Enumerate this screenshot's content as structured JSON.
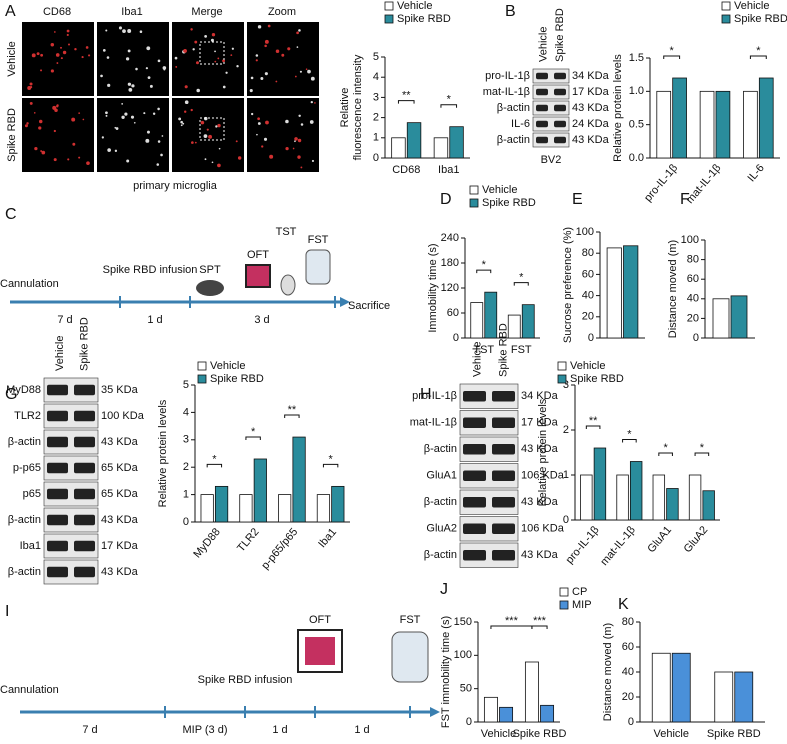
{
  "figure": {
    "panel_labels": [
      "A",
      "B",
      "C",
      "D",
      "E",
      "F",
      "G",
      "H",
      "I",
      "J",
      "K"
    ],
    "A_images": {
      "columns": [
        "CD68",
        "Iba1",
        "Merge",
        "Zoom"
      ],
      "rows": [
        "Vehicle",
        "Spike RBD"
      ],
      "caption": "primary microglia"
    },
    "B_blot": {
      "lanes": [
        "Vehicle",
        "Spike RBD"
      ],
      "bands": [
        [
          "pro-IL-1β",
          "34 KDa"
        ],
        [
          "mat-IL-1β",
          "17 KDa"
        ],
        [
          "β-actin",
          "43 KDa"
        ],
        [
          "IL-6",
          "24 KDa"
        ],
        [
          "β-actin",
          "43 KDa"
        ]
      ],
      "cell": "BV2"
    },
    "C_timeline": {
      "events": [
        "Cannulation",
        "Spike RBD infusion",
        "SPT",
        "OFT",
        "TST",
        "FST",
        "Sacrifice"
      ],
      "durations": [
        "7 d",
        "1 d",
        "3 d"
      ]
    },
    "G_blot": {
      "lanes": [
        "Vehicle",
        "Spike RBD"
      ],
      "bands": [
        [
          "MyD88",
          "35 KDa"
        ],
        [
          "TLR2",
          "100 KDa"
        ],
        [
          "β-actin",
          "43 KDa"
        ],
        [
          "p-p65",
          "65 KDa"
        ],
        [
          "p65",
          "65 KDa"
        ],
        [
          "β-actin",
          "43 KDa"
        ],
        [
          "Iba1",
          "17 KDa"
        ],
        [
          "β-actin",
          "43 KDa"
        ]
      ]
    },
    "H_blot": {
      "lanes": [
        "Vehicle",
        "Spike RBD"
      ],
      "bands": [
        [
          "pro-IL-1β",
          "34 KDa"
        ],
        [
          "mat-IL-1β",
          "17 KDa"
        ],
        [
          "β-actin",
          "43 KDa"
        ],
        [
          "GluA1",
          "106 KDa"
        ],
        [
          "β-actin",
          "43 KDa"
        ],
        [
          "GluA2",
          "106 KDa"
        ],
        [
          "β-actin",
          "43 KDa"
        ]
      ]
    },
    "I_timeline": {
      "events": [
        "Cannulation",
        "Spike RBD infusion",
        "OFT",
        "FST"
      ],
      "durations": [
        "7 d",
        "MIP (3 d)",
        "1 d",
        "1 d"
      ]
    }
  },
  "chart_data": [
    {
      "type": "bar",
      "y_label": [
        "Relative",
        "fluorescence intensity"
      ],
      "categories": [
        "CD68",
        "Iba1"
      ],
      "series": [
        {
          "name": "Vehicle",
          "color": "#ffffff",
          "values": [
            1.0,
            1.0
          ]
        },
        {
          "name": "Spike RBD",
          "color": "#2a8c9c",
          "values": [
            1.75,
            1.55
          ]
        }
      ],
      "ylim": [
        0,
        5
      ],
      "yticks": [
        0,
        1,
        2,
        3,
        4,
        5
      ],
      "significance": [
        "**",
        "*"
      ]
    },
    {
      "type": "bar",
      "y_label": "Relative protein levels",
      "categories": [
        "pro-IL-1β",
        "mat-IL-1β",
        "IL-6"
      ],
      "series": [
        {
          "name": "Vehicle",
          "color": "#ffffff",
          "values": [
            1.0,
            1.0,
            1.0
          ]
        },
        {
          "name": "Spike RBD",
          "color": "#2a8c9c",
          "values": [
            1.2,
            1.0,
            1.2
          ]
        }
      ],
      "ylim": [
        0,
        1.5
      ],
      "yticks": [
        {
          "value": 0,
          "label": "0.0"
        },
        {
          "value": 0.5,
          "label": "0.5"
        },
        {
          "value": 1,
          "label": "1.0"
        },
        {
          "value": 1.5,
          "label": "1.5"
        }
      ],
      "significance": [
        "*",
        null,
        "*"
      ]
    },
    {
      "type": "bar",
      "y_label": "Immobility time (s)",
      "categories": [
        "TST",
        "FST"
      ],
      "series": [
        {
          "name": "Vehicle",
          "color": "#ffffff",
          "values": [
            85,
            55
          ]
        },
        {
          "name": "Spike RBD",
          "color": "#2a8c9c",
          "values": [
            110,
            80
          ]
        }
      ],
      "ylim": [
        0,
        240
      ],
      "yticks": [
        0,
        60,
        120,
        180,
        240
      ],
      "significance": [
        "*",
        "*"
      ]
    },
    {
      "type": "bar",
      "y_label": "Sucrose preference (%)",
      "categories": [
        null
      ],
      "series": [
        {
          "color": "#ffffff",
          "values": [
            85
          ]
        },
        {
          "color": "#2a8c9c",
          "values": [
            87
          ]
        }
      ],
      "ylim": [
        0,
        100
      ],
      "yticks": [
        0,
        20,
        40,
        60,
        80,
        100
      ]
    },
    {
      "type": "bar",
      "y_label": "Distance moved (m)",
      "categories": [
        null
      ],
      "series": [
        {
          "color": "#ffffff",
          "values": [
            40
          ]
        },
        {
          "color": "#2a8c9c",
          "values": [
            43
          ]
        }
      ],
      "ylim": [
        0,
        100
      ],
      "yticks": [
        0,
        20,
        40,
        60,
        80,
        100
      ]
    },
    {
      "type": "bar",
      "y_label": "Relative protein levels",
      "categories": [
        "MyD88",
        "TLR2",
        "p-p65/p65",
        "Iba1"
      ],
      "series": [
        {
          "name": "Vehicle",
          "color": "#ffffff",
          "values": [
            1.0,
            1.0,
            1.0,
            1.0
          ]
        },
        {
          "name": "Spike RBD",
          "color": "#2a8c9c",
          "values": [
            1.3,
            2.3,
            3.1,
            1.3
          ]
        }
      ],
      "ylim": [
        0,
        5
      ],
      "yticks": [
        0,
        1,
        2,
        3,
        4,
        5
      ],
      "significance": [
        "*",
        "*",
        "**",
        "*"
      ]
    },
    {
      "type": "bar",
      "y_label": "Relative protein levels",
      "categories": [
        "pro-IL-1β",
        "mat-IL-1β",
        "GluA1",
        "GluA2"
      ],
      "series": [
        {
          "name": "Vehicle",
          "color": "#ffffff",
          "values": [
            1.0,
            1.0,
            1.0,
            1.0
          ]
        },
        {
          "name": "Spike RBD",
          "color": "#2a8c9c",
          "values": [
            1.6,
            1.3,
            0.7,
            0.65
          ]
        }
      ],
      "ylim": [
        0,
        3
      ],
      "yticks": [
        0,
        1,
        2,
        3
      ],
      "significance": [
        "**",
        "*",
        "*",
        "*"
      ]
    },
    {
      "type": "bar",
      "y_label": "FST immobility time (s)",
      "categories": [
        "Vehicle",
        "Spike RBD"
      ],
      "series": [
        {
          "name": "CP",
          "color": "#ffffff",
          "values": [
            37,
            90
          ]
        },
        {
          "name": "MIP",
          "color": "#4a90d9",
          "values": [
            22,
            25
          ]
        }
      ],
      "ylim": [
        0,
        150
      ],
      "yticks": [
        0,
        50,
        100,
        150
      ],
      "significance": [
        "***",
        "***"
      ]
    },
    {
      "type": "bar",
      "y_label": "Distance moved (m)",
      "categories": [
        "Vehicle",
        "Spike RBD"
      ],
      "series": [
        {
          "color": "#ffffff",
          "values": [
            55,
            40
          ]
        },
        {
          "color": "#4a90d9",
          "values": [
            55,
            40
          ]
        }
      ],
      "ylim": [
        0,
        80
      ],
      "yticks": [
        0,
        20,
        40,
        60,
        80
      ]
    }
  ]
}
